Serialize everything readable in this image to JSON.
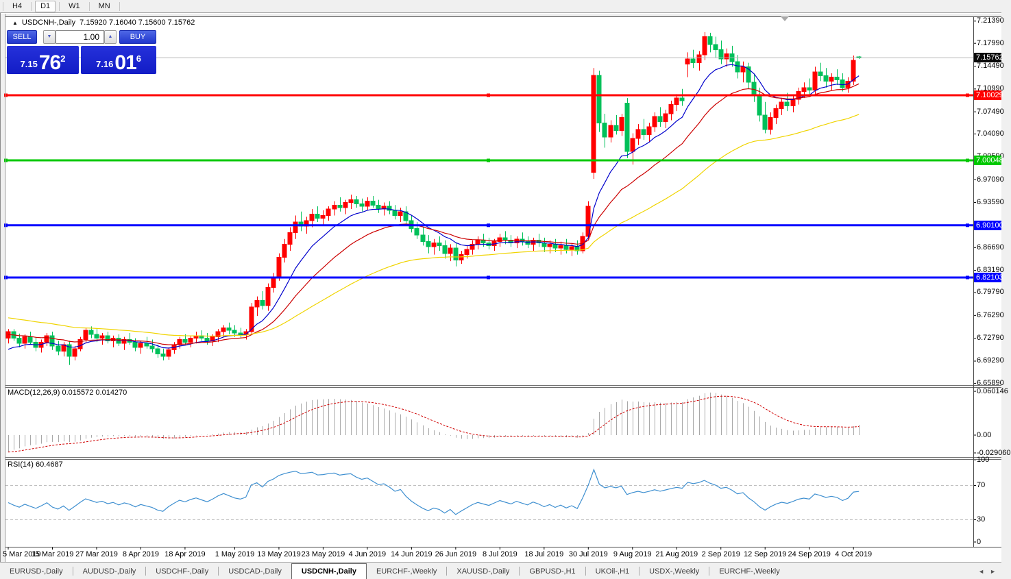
{
  "toolbar": {
    "timeframes": [
      {
        "label": "H4",
        "active": false
      },
      {
        "label": "D1",
        "active": true
      },
      {
        "label": "W1",
        "active": false
      },
      {
        "label": "MN",
        "active": false
      }
    ]
  },
  "window": {
    "collapse_arrow": "▲",
    "title": "USDCNH-,Daily",
    "ohlc_text": "7.15920 7.16040 7.15600 7.15762"
  },
  "trade_panel": {
    "sell_label": "SELL",
    "buy_label": "BUY",
    "volume": "1.00",
    "spinner_down": "▼",
    "spinner_up": "▲",
    "sell_price": {
      "base": "7.15",
      "big": "76",
      "sup": "2"
    },
    "buy_price": {
      "base": "7.16",
      "big": "01",
      "sup": "6"
    }
  },
  "colors": {
    "candle_up": "#ff0000",
    "candle_down": "#00c05a",
    "ma_fast": "#0000cc",
    "ma_mid": "#cc0000",
    "ma_slow": "#f0d400",
    "macd_bar": "#a8a8a8",
    "macd_signal": "#d00000",
    "rsi_line": "#3e8fd0",
    "level_dash": "#c0c0c0",
    "current_price_line": "#b4b4b4"
  },
  "price_axis": {
    "labels": [
      "7.21390",
      "7.17990",
      "7.14490",
      "7.10990",
      "7.07490",
      "7.04090",
      "7.00590",
      "6.97090",
      "6.93590",
      "6.86690",
      "6.83190",
      "6.79790",
      "6.76290",
      "6.72790",
      "6.69290",
      "6.65890"
    ],
    "badges": [
      {
        "text": "7.15762",
        "p": 7.15762,
        "bg": "#0a0a0a"
      },
      {
        "text": "7.10029",
        "p": 7.10029,
        "bg": "#ff0000"
      },
      {
        "text": "7.00048",
        "p": 7.00048,
        "bg": "#00c800"
      },
      {
        "text": "6.90100",
        "p": 6.901,
        "bg": "#0000ff"
      },
      {
        "text": "6.82103",
        "p": 6.82103,
        "bg": "#0000ff"
      }
    ]
  },
  "chart_data": {
    "type": "candlestick",
    "symbol": "USDCNH-",
    "timeframe": "Daily",
    "ohlc_current": {
      "open": 7.1592,
      "high": 7.1604,
      "low": 7.156,
      "close": 7.15762
    },
    "bid": 7.15762,
    "ask": 7.16016,
    "y_range": [
      6.6589,
      7.2139
    ],
    "current_price": 7.15762,
    "horizontal_lines": [
      {
        "price": 7.10029,
        "color": "#ff0000"
      },
      {
        "price": 7.00048,
        "color": "#00c800"
      },
      {
        "price": 6.901,
        "color": "#0000ff"
      },
      {
        "price": 6.82103,
        "color": "#0000ff"
      }
    ],
    "moving_averages": [
      {
        "period": 10,
        "color": "#0000cc",
        "seed": 6.705
      },
      {
        "period": 22,
        "color": "#cc0000",
        "seed": 6.733
      },
      {
        "period": 55,
        "color": "#f0d400",
        "seed": 6.76
      }
    ],
    "macd": {
      "fast": 12,
      "slow": 26,
      "signal": 9,
      "value": 0.015572,
      "signal_value": 0.01427,
      "axis_max": 0.060146,
      "axis_min": -0.02906
    },
    "rsi": {
      "period": 14,
      "value": 60.4687,
      "levels": [
        70,
        30
      ]
    },
    "candles": [
      [
        6.728,
        6.742,
        6.72,
        6.738
      ],
      [
        6.738,
        6.742,
        6.724,
        6.728
      ],
      [
        6.728,
        6.735,
        6.714,
        6.72
      ],
      [
        6.72,
        6.734,
        6.712,
        6.73
      ],
      [
        6.73,
        6.738,
        6.718,
        6.722
      ],
      [
        6.722,
        6.73,
        6.708,
        6.714
      ],
      [
        6.714,
        6.726,
        6.706,
        6.722
      ],
      [
        6.722,
        6.736,
        6.716,
        6.732
      ],
      [
        6.732,
        6.738,
        6.71,
        6.716
      ],
      [
        6.716,
        6.724,
        6.702,
        6.708
      ],
      [
        6.708,
        6.722,
        6.7,
        6.718
      ],
      [
        6.718,
        6.724,
        6.687,
        6.7
      ],
      [
        6.7,
        6.716,
        6.694,
        6.712
      ],
      [
        6.712,
        6.73,
        6.708,
        6.726
      ],
      [
        6.726,
        6.744,
        6.72,
        6.74
      ],
      [
        6.74,
        6.746,
        6.728,
        6.734
      ],
      [
        6.734,
        6.742,
        6.722,
        6.728
      ],
      [
        6.728,
        6.736,
        6.718,
        6.732
      ],
      [
        6.732,
        6.738,
        6.72,
        6.724
      ],
      [
        6.724,
        6.732,
        6.714,
        6.728
      ],
      [
        6.728,
        6.734,
        6.716,
        6.72
      ],
      [
        6.72,
        6.73,
        6.71,
        6.726
      ],
      [
        6.726,
        6.736,
        6.718,
        6.722
      ],
      [
        6.722,
        6.728,
        6.708,
        6.714
      ],
      [
        6.714,
        6.724,
        6.704,
        6.72
      ],
      [
        6.72,
        6.73,
        6.712,
        6.716
      ],
      [
        6.716,
        6.726,
        6.706,
        6.712
      ],
      [
        6.712,
        6.718,
        6.698,
        6.704
      ],
      [
        6.704,
        6.712,
        6.694,
        6.7
      ],
      [
        6.7,
        6.714,
        6.695,
        6.71
      ],
      [
        6.71,
        6.722,
        6.704,
        6.718
      ],
      [
        6.718,
        6.73,
        6.712,
        6.726
      ],
      [
        6.726,
        6.734,
        6.718,
        6.722
      ],
      [
        6.722,
        6.732,
        6.714,
        6.728
      ],
      [
        6.728,
        6.738,
        6.72,
        6.732
      ],
      [
        6.732,
        6.74,
        6.724,
        6.728
      ],
      [
        6.728,
        6.736,
        6.718,
        6.724
      ],
      [
        6.724,
        6.734,
        6.716,
        6.73
      ],
      [
        6.73,
        6.742,
        6.722,
        6.738
      ],
      [
        6.738,
        6.748,
        6.73,
        6.744
      ],
      [
        6.744,
        6.752,
        6.734,
        6.74
      ],
      [
        6.74,
        6.748,
        6.73,
        6.736
      ],
      [
        6.736,
        6.744,
        6.728,
        6.734
      ],
      [
        6.734,
        6.742,
        6.726,
        6.738
      ],
      [
        6.738,
        6.782,
        6.734,
        6.776
      ],
      [
        6.776,
        6.792,
        6.762,
        6.786
      ],
      [
        6.786,
        6.8,
        6.772,
        6.778
      ],
      [
        6.778,
        6.812,
        6.77,
        6.806
      ],
      [
        6.806,
        6.828,
        6.798,
        6.822
      ],
      [
        6.822,
        6.858,
        6.816,
        6.852
      ],
      [
        6.852,
        6.88,
        6.844,
        6.872
      ],
      [
        6.872,
        6.898,
        6.862,
        6.89
      ],
      [
        6.89,
        6.916,
        6.88,
        6.906
      ],
      [
        6.906,
        6.922,
        6.892,
        6.9
      ],
      [
        6.9,
        6.914,
        6.888,
        6.908
      ],
      [
        6.908,
        6.926,
        6.898,
        6.918
      ],
      [
        6.918,
        6.93,
        6.906,
        6.912
      ],
      [
        6.912,
        6.924,
        6.902,
        6.916
      ],
      [
        6.916,
        6.93,
        6.908,
        6.926
      ],
      [
        6.926,
        6.938,
        6.916,
        6.932
      ],
      [
        6.932,
        6.944,
        6.922,
        6.928
      ],
      [
        6.928,
        6.94,
        6.918,
        6.936
      ],
      [
        6.936,
        6.948,
        6.926,
        6.94
      ],
      [
        6.94,
        6.946,
        6.928,
        6.934
      ],
      [
        6.934,
        6.942,
        6.922,
        6.93
      ],
      [
        6.93,
        6.944,
        6.924,
        6.938
      ],
      [
        6.938,
        6.946,
        6.928,
        6.932
      ],
      [
        6.932,
        6.94,
        6.92,
        6.926
      ],
      [
        6.926,
        6.936,
        6.916,
        6.93
      ],
      [
        6.93,
        6.938,
        6.918,
        6.924
      ],
      [
        6.924,
        6.932,
        6.91,
        6.916
      ],
      [
        6.916,
        6.928,
        6.906,
        6.922
      ],
      [
        6.922,
        6.93,
        6.902,
        6.908
      ],
      [
        6.908,
        6.916,
        6.89,
        6.896
      ],
      [
        6.896,
        6.906,
        6.88,
        6.886
      ],
      [
        6.886,
        6.898,
        6.87,
        6.876
      ],
      [
        6.876,
        6.886,
        6.858,
        6.868
      ],
      [
        6.868,
        6.88,
        6.856,
        6.874
      ],
      [
        6.874,
        6.884,
        6.862,
        6.87
      ],
      [
        6.87,
        6.878,
        6.85,
        6.858
      ],
      [
        6.858,
        6.872,
        6.846,
        6.866
      ],
      [
        6.866,
        6.874,
        6.838,
        6.848
      ],
      [
        6.848,
        6.862,
        6.842,
        6.856
      ],
      [
        6.856,
        6.87,
        6.85,
        6.864
      ],
      [
        6.864,
        6.878,
        6.856,
        6.872
      ],
      [
        6.872,
        6.884,
        6.864,
        6.878
      ],
      [
        6.878,
        6.888,
        6.868,
        6.874
      ],
      [
        6.874,
        6.882,
        6.864,
        6.87
      ],
      [
        6.87,
        6.88,
        6.862,
        6.876
      ],
      [
        6.876,
        6.888,
        6.868,
        6.882
      ],
      [
        6.882,
        6.892,
        6.872,
        6.878
      ],
      [
        6.878,
        6.886,
        6.868,
        6.874
      ],
      [
        6.874,
        6.884,
        6.866,
        6.88
      ],
      [
        6.88,
        6.89,
        6.87,
        6.876
      ],
      [
        6.876,
        6.884,
        6.866,
        6.872
      ],
      [
        6.872,
        6.882,
        6.862,
        6.878
      ],
      [
        6.878,
        6.888,
        6.868,
        6.874
      ],
      [
        6.874,
        6.882,
        6.86,
        6.868
      ],
      [
        6.868,
        6.878,
        6.858,
        6.872
      ],
      [
        6.872,
        6.88,
        6.86,
        6.866
      ],
      [
        6.866,
        6.876,
        6.856,
        6.87
      ],
      [
        6.87,
        6.88,
        6.858,
        6.864
      ],
      [
        6.864,
        6.874,
        6.854,
        6.868
      ],
      [
        6.868,
        6.878,
        6.856,
        6.862
      ],
      [
        6.862,
        6.89,
        6.858,
        6.884
      ],
      [
        6.884,
        6.938,
        6.88,
        6.93
      ],
      [
        6.982,
        7.142,
        6.972,
        7.131
      ],
      [
        7.131,
        7.138,
        7.044,
        7.058
      ],
      [
        7.058,
        7.072,
        7.02,
        7.036
      ],
      [
        7.036,
        7.062,
        7.028,
        7.054
      ],
      [
        7.054,
        7.07,
        7.04,
        7.046
      ],
      [
        7.046,
        7.072,
        7.038,
        7.066
      ],
      [
        7.088,
        7.096,
        7.004,
        7.014
      ],
      [
        7.014,
        7.042,
        6.994,
        7.034
      ],
      [
        7.034,
        7.056,
        7.024,
        7.048
      ],
      [
        7.048,
        7.064,
        7.032,
        7.04
      ],
      [
        7.04,
        7.058,
        7.028,
        7.052
      ],
      [
        7.052,
        7.074,
        7.044,
        7.068
      ],
      [
        7.068,
        7.082,
        7.052,
        7.06
      ],
      [
        7.06,
        7.078,
        7.05,
        7.072
      ],
      [
        7.072,
        7.092,
        7.062,
        7.086
      ],
      [
        7.086,
        7.102,
        7.076,
        7.096
      ],
      [
        7.096,
        7.11,
        7.084,
        7.092
      ],
      [
        7.148,
        7.166,
        7.128,
        7.156
      ],
      [
        7.156,
        7.17,
        7.142,
        7.15
      ],
      [
        7.15,
        7.168,
        7.138,
        7.162
      ],
      [
        7.162,
        7.197,
        7.154,
        7.19
      ],
      [
        7.19,
        7.196,
        7.166,
        7.178
      ],
      [
        7.178,
        7.19,
        7.158,
        7.17
      ],
      [
        7.17,
        7.184,
        7.148,
        7.156
      ],
      [
        7.156,
        7.172,
        7.144,
        7.164
      ],
      [
        7.164,
        7.176,
        7.144,
        7.152
      ],
      [
        7.152,
        7.162,
        7.126,
        7.136
      ],
      [
        7.136,
        7.152,
        7.12,
        7.144
      ],
      [
        7.144,
        7.15,
        7.11,
        7.12
      ],
      [
        7.12,
        7.132,
        7.09,
        7.1
      ],
      [
        7.1,
        7.112,
        7.06,
        7.07
      ],
      [
        7.07,
        7.09,
        7.042,
        7.048
      ],
      [
        7.048,
        7.074,
        7.04,
        7.066
      ],
      [
        7.066,
        7.086,
        7.056,
        7.08
      ],
      [
        7.08,
        7.096,
        7.07,
        7.09
      ],
      [
        7.09,
        7.104,
        7.076,
        7.084
      ],
      [
        7.084,
        7.1,
        7.074,
        7.094
      ],
      [
        7.094,
        7.112,
        7.086,
        7.106
      ],
      [
        7.106,
        7.12,
        7.096,
        7.112
      ],
      [
        7.112,
        7.126,
        7.1,
        7.108
      ],
      [
        7.108,
        7.144,
        7.102,
        7.136
      ],
      [
        7.136,
        7.15,
        7.122,
        7.13
      ],
      [
        7.13,
        7.142,
        7.112,
        7.122
      ],
      [
        7.122,
        7.134,
        7.108,
        7.128
      ],
      [
        7.128,
        7.14,
        7.116,
        7.124
      ],
      [
        7.124,
        7.134,
        7.106,
        7.112
      ],
      [
        7.112,
        7.128,
        7.104,
        7.122
      ],
      [
        7.122,
        7.161,
        7.116,
        7.154
      ],
      [
        7.1592,
        7.1604,
        7.156,
        7.15762
      ]
    ]
  },
  "macd_panel": {
    "label": "MACD(12,26,9) 0.015572 0.014270",
    "axis": [
      {
        "text": "0.060146",
        "v": 0.060146
      },
      {
        "text": "0.00",
        "v": 0
      },
      {
        "text": "-0.029060",
        "v": -0.02906
      }
    ]
  },
  "rsi_panel": {
    "label": "RSI(14) 60.4687",
    "axis": [
      {
        "text": "100",
        "v": 100
      },
      {
        "text": "70",
        "v": 70
      },
      {
        "text": "30",
        "v": 30
      },
      {
        "text": "0",
        "v": 0
      }
    ],
    "levels": [
      70,
      30
    ]
  },
  "date_axis": [
    {
      "text": "5 Mar 2019",
      "i": 0
    },
    {
      "text": "15 Mar 2019",
      "i": 8
    },
    {
      "text": "27 Mar 2019",
      "i": 16
    },
    {
      "text": "8 Apr 2019",
      "i": 24
    },
    {
      "text": "18 Apr 2019",
      "i": 32
    },
    {
      "text": "1 May 2019",
      "i": 41
    },
    {
      "text": "13 May 2019",
      "i": 49
    },
    {
      "text": "23 May 2019",
      "i": 57
    },
    {
      "text": "4 Jun 2019",
      "i": 65
    },
    {
      "text": "14 Jun 2019",
      "i": 73
    },
    {
      "text": "26 Jun 2019",
      "i": 81
    },
    {
      "text": "8 Jul 2019",
      "i": 89
    },
    {
      "text": "18 Jul 2019",
      "i": 97
    },
    {
      "text": "30 Jul 2019",
      "i": 105
    },
    {
      "text": "9 Aug 2019",
      "i": 113
    },
    {
      "text": "21 Aug 2019",
      "i": 121
    },
    {
      "text": "2 Sep 2019",
      "i": 129
    },
    {
      "text": "12 Sep 2019",
      "i": 137
    },
    {
      "text": "24 Sep 2019",
      "i": 145
    },
    {
      "text": "4 Oct 2019",
      "i": 153
    }
  ],
  "tab_bar": {
    "tabs": [
      {
        "label": "EURUSD-,Daily",
        "active": false
      },
      {
        "label": "AUDUSD-,Daily",
        "active": false
      },
      {
        "label": "USDCHF-,Daily",
        "active": false
      },
      {
        "label": "USDCAD-,Daily",
        "active": false
      },
      {
        "label": "USDCNH-,Daily",
        "active": true
      },
      {
        "label": "EURCHF-,Weekly",
        "active": false
      },
      {
        "label": "XAUUSD-,Daily",
        "active": false
      },
      {
        "label": "GBPUSD-,H1",
        "active": false
      },
      {
        "label": "UKOil-,H1",
        "active": false
      },
      {
        "label": "USDX-,Weekly",
        "active": false
      },
      {
        "label": "EURCHF-,Weekly",
        "active": false
      }
    ],
    "left_arrow": "◄",
    "right_arrow": "►"
  }
}
